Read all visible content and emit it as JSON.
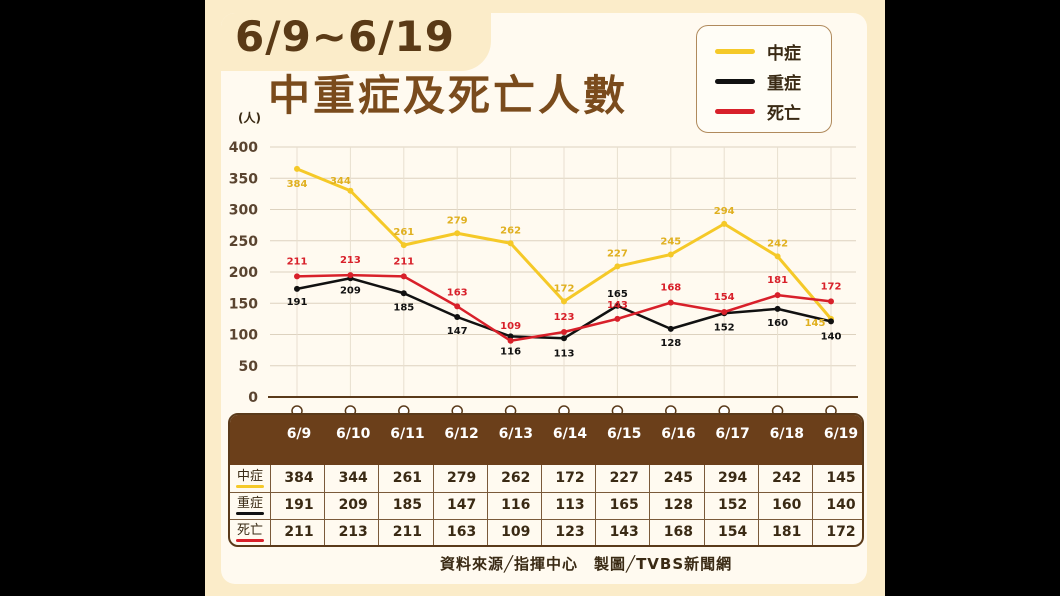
{
  "header": {
    "date_range": "6/9~6/19",
    "title": "中重症及死亡人數"
  },
  "source_credit": "資料來源╱指揮中心　製圖╱TVBS新聞網",
  "chart_data": {
    "type": "line",
    "title": "中重症及死亡人數",
    "ylabel": "(人)",
    "ylim": [
      0,
      400
    ],
    "yticks": [
      "0",
      "50",
      "100",
      "150",
      "200",
      "250",
      "300",
      "350",
      "400"
    ],
    "categories": [
      "6/9",
      "6/10",
      "6/11",
      "6/12",
      "6/13",
      "6/14",
      "6/15",
      "6/16",
      "6/17",
      "6/18",
      "6/19"
    ],
    "legend_position": "top-right",
    "grid": true,
    "series": [
      {
        "name": "中症",
        "color": "#f5c928",
        "label_color": "#e0b020",
        "values": [
          384,
          344,
          261,
          279,
          262,
          172,
          227,
          245,
          294,
          242,
          145
        ],
        "plotted": [
          365,
          330,
          243,
          262,
          246,
          153,
          209,
          228,
          277,
          225,
          125
        ]
      },
      {
        "name": "重症",
        "color": "#111111",
        "label_color": "#111111",
        "values": [
          191,
          209,
          185,
          147,
          116,
          113,
          165,
          128,
          152,
          160,
          140
        ],
        "plotted": [
          173,
          190,
          166,
          128,
          97,
          94,
          146,
          109,
          134,
          141,
          121
        ]
      },
      {
        "name": "死亡",
        "color": "#d8202a",
        "label_color": "#d8202a",
        "values": [
          211,
          213,
          211,
          163,
          109,
          123,
          143,
          168,
          154,
          181,
          172
        ],
        "plotted": [
          193,
          195,
          193,
          145,
          90,
          104,
          125,
          151,
          136,
          163,
          153
        ]
      }
    ]
  }
}
